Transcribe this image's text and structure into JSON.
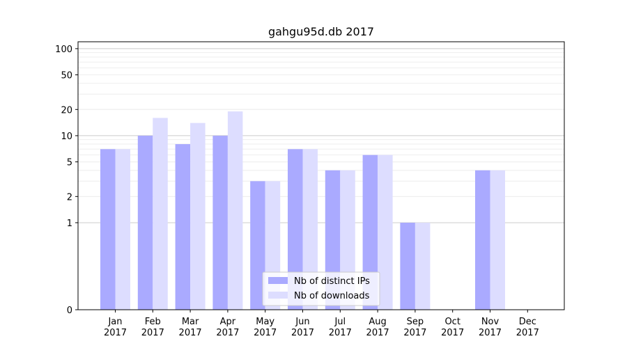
{
  "chart_data": {
    "type": "bar",
    "title": "gahgu95d.db 2017",
    "xlabel": "",
    "ylabel": "",
    "categories": [
      [
        "Jan",
        "2017"
      ],
      [
        "Feb",
        "2017"
      ],
      [
        "Mar",
        "2017"
      ],
      [
        "Apr",
        "2017"
      ],
      [
        "May",
        "2017"
      ],
      [
        "Jun",
        "2017"
      ],
      [
        "Jul",
        "2017"
      ],
      [
        "Aug",
        "2017"
      ],
      [
        "Sep",
        "2017"
      ],
      [
        "Oct",
        "2017"
      ],
      [
        "Nov",
        "2017"
      ],
      [
        "Dec",
        "2017"
      ]
    ],
    "series": [
      {
        "name": "Nb of distinct IPs",
        "color": "#aaaaff",
        "values": [
          7,
          10,
          8,
          10,
          3,
          7,
          4,
          6,
          1,
          0,
          4,
          0
        ]
      },
      {
        "name": "Nb of downloads",
        "color": "#ddddff",
        "values": [
          7,
          16,
          14,
          19,
          3,
          7,
          4,
          6,
          1,
          0,
          4,
          0
        ]
      }
    ],
    "yscale": "symlog",
    "ylim": [
      0,
      120
    ],
    "yticks": [
      0,
      1,
      2,
      5,
      10,
      20,
      50,
      100
    ],
    "grid": true,
    "legend_position": "lower-center"
  }
}
